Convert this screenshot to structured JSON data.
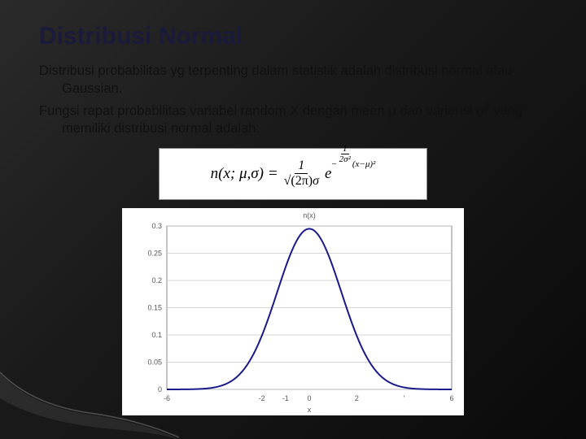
{
  "title": "Distribusi Normal",
  "paragraphs": {
    "p1": "Distribusi probabilitas yg terpenting dalam statistik adalah distribusi normal atau Gaussian.",
    "p2_pre": "Fungsi rapat probabilitas variabel random X dengan mean μ dan variansi σ",
    "p2_sup": "2",
    "p2_post": " yang memiliki distribusi normal adalah:"
  },
  "formula": {
    "lhs": "n(x; μ,σ) =",
    "frac_num": "1",
    "frac_den_sqrt": "√(2π)",
    "frac_den_sigma": "σ",
    "e": "e",
    "exp_neg": "−",
    "exp_frac_num": "1",
    "exp_frac_den": "2σ²",
    "exp_tail": "(x−μ)²"
  },
  "chart": {
    "type": "line",
    "title": "n(x)",
    "xlabel": "x",
    "xlim": [
      -6,
      6
    ],
    "ylim": [
      0,
      0.3
    ],
    "xticks": [
      -6,
      -1,
      -2,
      0,
      2,
      4,
      6
    ],
    "xtick_labels": [
      "-6",
      "-1",
      "-2",
      "0",
      "2",
      "'",
      "6"
    ],
    "yticks": [
      0,
      0.05,
      0.1,
      0.15,
      0.2,
      0.25,
      0.3
    ],
    "ytick_labels": [
      "0",
      "0.05",
      "0.1",
      "0.15",
      "0.2",
      "0.25",
      "0.3"
    ],
    "line_color": "#1a1a8a",
    "line_width": 2,
    "grid_color": "#c8c8c8",
    "axis_color": "#888888",
    "background_color": "#ffffff",
    "text_color": "#555555",
    "label_fontsize": 9,
    "mu": 0,
    "sigma": 1.35,
    "amplitude": 0.295
  },
  "colors": {
    "slide_bg_dark": "#1a1a1a",
    "title_color": "#1a1a3a",
    "text_color": "#111111"
  }
}
